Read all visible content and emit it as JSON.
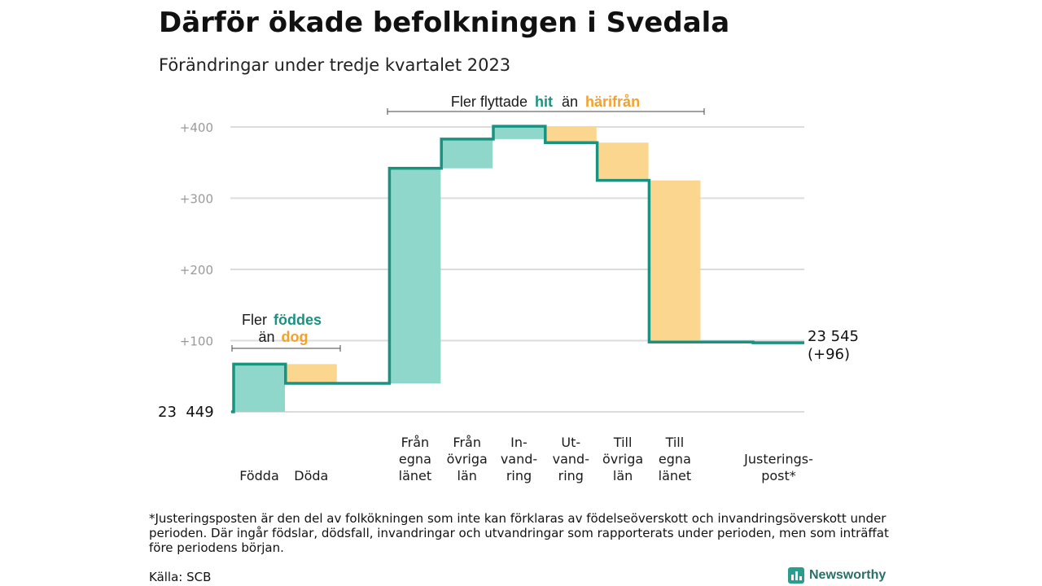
{
  "title": "Därför ökade befolkningen i Svedala",
  "subtitle": "Förändringar under tredje kvartalet 2023",
  "colors": {
    "increase": "#8fd6cb",
    "decrease": "#fbd68e",
    "line": "#1a9281",
    "hit": "#1a9281",
    "harifran": "#f2a12c",
    "grid": "#dcdcdc"
  },
  "annotations": {
    "born_line1": "Fler",
    "born_hl1": "föddes",
    "born_line2a": "än",
    "born_hl2": "dog",
    "moved_a": "Fler flyttade",
    "moved_hl1": "hit",
    "moved_b": "än",
    "moved_hl2": "härifrån"
  },
  "chart_data": {
    "type": "waterfall",
    "start_label": "23  449",
    "start_value": 23449,
    "end_label_line1": "23 545",
    "end_label_line2": "(+96)",
    "yticks": [
      "+100",
      "+200",
      "+300",
      "+400"
    ],
    "ylim": [
      0,
      400
    ],
    "categories": [
      {
        "lines": [
          "Födda"
        ],
        "value": 67
      },
      {
        "lines": [
          "Döda"
        ],
        "value": -27
      },
      {
        "lines": [],
        "value": 0
      },
      {
        "lines": [
          "Från",
          "egna",
          "länet"
        ],
        "value": 302
      },
      {
        "lines": [
          "Från",
          "övriga",
          "län"
        ],
        "value": 41
      },
      {
        "lines": [
          "In-",
          "vand-",
          "ring"
        ],
        "value": 18
      },
      {
        "lines": [
          "Ut-",
          "vand-",
          "ring"
        ],
        "value": -23
      },
      {
        "lines": [
          "Till",
          "övriga",
          "län"
        ],
        "value": -53
      },
      {
        "lines": [
          "Till",
          "egna",
          "länet"
        ],
        "value": -227
      },
      {
        "lines": [],
        "value": 0
      },
      {
        "lines": [
          "Justerings-",
          "post*"
        ],
        "value": -1
      }
    ]
  },
  "footnote": "*Justeringsposten är den del av folkökningen som inte kan förklaras av födelseöverskott och invandringsöverskott under perioden. Där ingår födslar, dödsfall, invandringar och utvandringar som rapporterats under perioden, men som inträffat före periodens början.",
  "source": "Källa: SCB",
  "brand": "Newsworthy",
  "brand_icon": "bar-chart-icon"
}
